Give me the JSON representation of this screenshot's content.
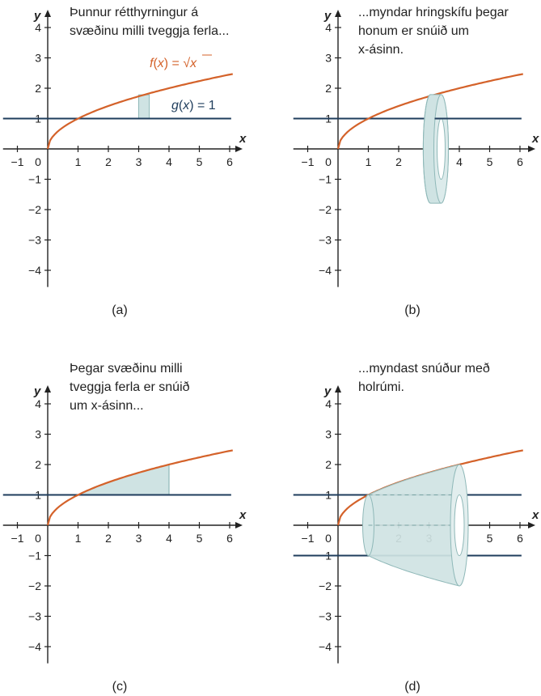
{
  "colors": {
    "f_curve": "#d4622a",
    "g_line": "#1f3d5c",
    "axis": "#222222",
    "solid_fill": "#cfe3e3",
    "solid_stroke": "#8fb8b8"
  },
  "panels": [
    {
      "caption": "(a)",
      "note_lines": [
        "Þunnur rétthyrningur á",
        "svæðinu milli tveggja ferla..."
      ],
      "f_label": [
        "f",
        "(",
        "x",
        ") = √",
        "x"
      ],
      "g_label": [
        "g",
        "(",
        "x",
        ") = 1"
      ],
      "y_ticks": [
        "4",
        "3",
        "2",
        "1",
        "−1",
        "−2",
        "−3",
        "−4"
      ],
      "x_ticks": [
        "−1",
        "0",
        "1",
        "2",
        "3",
        "4",
        "5",
        "6"
      ],
      "x_axis_label": "x",
      "y_axis_label": "y"
    },
    {
      "caption": "(b)",
      "note_lines": [
        "...myndar hringskífu þegar",
        "honum er snúið um",
        "x-ásinn."
      ],
      "y_ticks": [
        "4",
        "3",
        "2",
        "1",
        "−1",
        "−2",
        "−3",
        "−4"
      ],
      "x_ticks": [
        "−1",
        "0",
        "1",
        "2",
        "3",
        "4",
        "5",
        "6"
      ],
      "x_axis_label": "x",
      "y_axis_label": "y"
    },
    {
      "caption": "(c)",
      "note_lines": [
        "Þegar svæðinu milli",
        "tveggja ferla er snúið",
        "um x-ásinn..."
      ],
      "y_ticks": [
        "4",
        "3",
        "2",
        "1",
        "−1",
        "−2",
        "−3",
        "−4"
      ],
      "x_ticks": [
        "−1",
        "0",
        "1",
        "2",
        "3",
        "4",
        "5",
        "6"
      ],
      "x_axis_label": "x",
      "y_axis_label": "y"
    },
    {
      "caption": "(d)",
      "note_lines": [
        "...myndast snúður með",
        "holrúmi."
      ],
      "y_ticks": [
        "4",
        "3",
        "2",
        "1",
        "−1",
        "−2",
        "−3",
        "−4"
      ],
      "x_ticks": [
        "−1",
        "0",
        "1",
        "2",
        "3",
        "4",
        "5",
        "6"
      ],
      "x_axis_label": "x",
      "y_axis_label": "y"
    }
  ]
}
